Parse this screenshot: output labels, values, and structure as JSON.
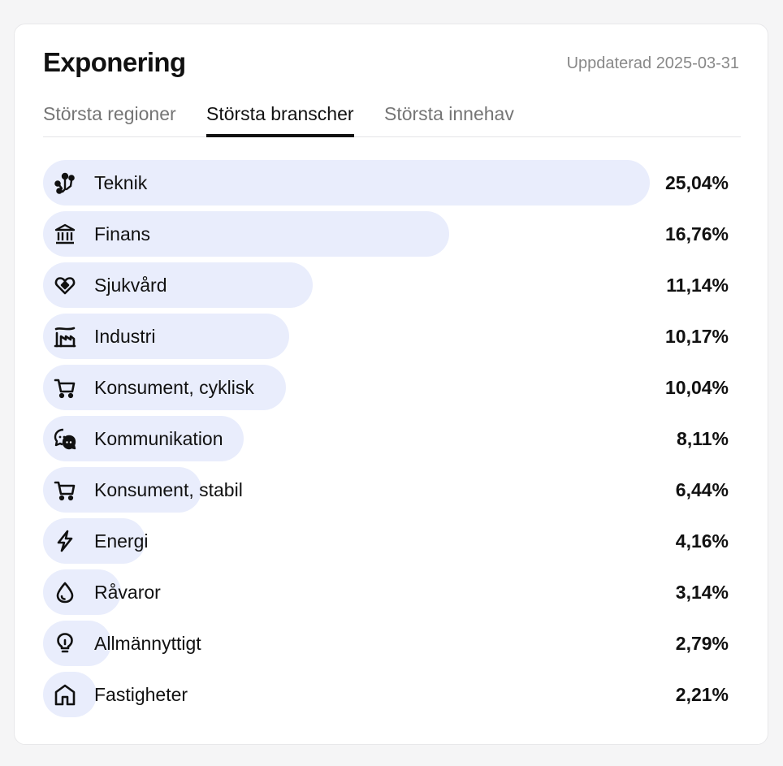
{
  "header": {
    "title": "Exponering",
    "updated": "Uppdaterad 2025-03-31"
  },
  "tabs": [
    {
      "label": "Största regioner",
      "active": false
    },
    {
      "label": "Största branscher",
      "active": true
    },
    {
      "label": "Största innehav",
      "active": false
    }
  ],
  "colors": {
    "bar": "#e9edfc",
    "text": "#111111",
    "muted": "#757575"
  },
  "sectors": [
    {
      "label": "Teknik",
      "value_text": "25,04%",
      "value": 25.04,
      "icon": "technology-icon"
    },
    {
      "label": "Finans",
      "value_text": "16,76%",
      "value": 16.76,
      "icon": "bank-icon"
    },
    {
      "label": "Sjukvård",
      "value_text": "11,14%",
      "value": 11.14,
      "icon": "health-heart-icon"
    },
    {
      "label": "Industri",
      "value_text": "10,17%",
      "value": 10.17,
      "icon": "factory-icon"
    },
    {
      "label": "Konsument, cyklisk",
      "value_text": "10,04%",
      "value": 10.04,
      "icon": "shopping-cart-icon"
    },
    {
      "label": "Kommunikation",
      "value_text": "8,11%",
      "value": 8.11,
      "icon": "chat-bubbles-icon"
    },
    {
      "label": "Konsument, stabil",
      "value_text": "6,44%",
      "value": 6.44,
      "icon": "shopping-cart-icon"
    },
    {
      "label": "Energi",
      "value_text": "4,16%",
      "value": 4.16,
      "icon": "lightning-bolt-icon"
    },
    {
      "label": "Råvaror",
      "value_text": "3,14%",
      "value": 3.14,
      "icon": "water-drop-icon"
    },
    {
      "label": "Allmännyttigt",
      "value_text": "2,79%",
      "value": 2.79,
      "icon": "lightbulb-icon"
    },
    {
      "label": "Fastigheter",
      "value_text": "2,21%",
      "value": 2.21,
      "icon": "house-icon"
    }
  ]
}
